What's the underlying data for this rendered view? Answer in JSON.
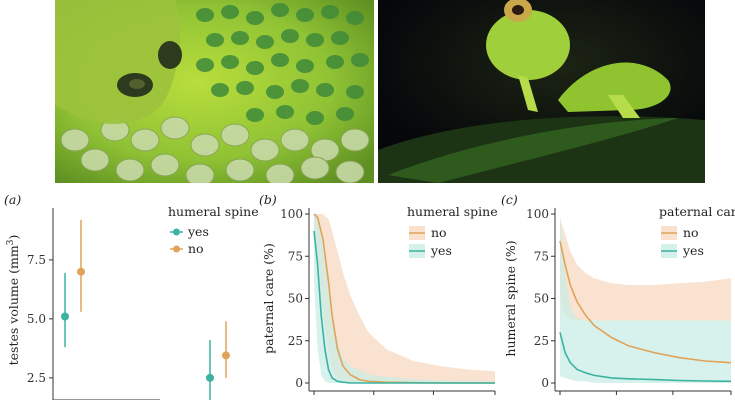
{
  "photos": {
    "left": {
      "subject": "glass frog with eggs"
    },
    "right": {
      "subject": "green frog on leaf"
    }
  },
  "colors": {
    "teal": "#3bb3a2",
    "orange": "#e0a35a",
    "orange_fill": "#f7d9c0",
    "teal_fill": "#c9ece6"
  },
  "chart_data": [
    {
      "panel": "(a)",
      "type": "scatter",
      "title": "",
      "xlabel": "",
      "ylabel": "testes volume (mm",
      "ylabel_sup": "3",
      "ylabel_end": ")",
      "ylim": [
        1.9,
        9.7
      ],
      "yticks": [
        "2.5",
        "5.0",
        "7.5"
      ],
      "yticks_values": [
        2.5,
        5.0,
        7.5
      ],
      "legend": {
        "title": "humeral spine",
        "placement": "top-right",
        "entries": [
          "yes",
          "no"
        ]
      },
      "series": [
        {
          "name": "yes",
          "color": "#3bb3a2",
          "points": [
            {
              "group": 1,
              "y": 5.1,
              "low": 3.8,
              "high": 6.95
            },
            {
              "group": 2,
              "y": 2.5,
              "low": 1.55,
              "high": 4.1
            }
          ]
        },
        {
          "name": "no",
          "color": "#e0a35a",
          "points": [
            {
              "group": 1,
              "y": 7.0,
              "low": 5.3,
              "high": 9.2
            },
            {
              "group": 2,
              "y": 3.45,
              "low": 2.5,
              "high": 4.9
            }
          ]
        }
      ]
    },
    {
      "panel": "(b)",
      "type": "line",
      "title": "",
      "ylabel": "paternal care (%)",
      "xlim": [
        0,
        100
      ],
      "ylim": [
        0,
        100
      ],
      "yticks": [
        "0",
        "25",
        "50",
        "75",
        "100"
      ],
      "yticks_values": [
        0,
        25,
        50,
        75,
        100
      ],
      "legend": {
        "title": "humeral spine",
        "placement": "top-right",
        "entries": [
          "no",
          "yes"
        ]
      },
      "series": [
        {
          "name": "no",
          "color": "#e0a35a",
          "x": [
            0,
            2,
            5,
            8,
            10,
            13,
            16,
            20,
            25,
            30,
            40,
            55,
            70,
            85,
            100
          ],
          "y": [
            100,
            98,
            85,
            60,
            40,
            20,
            10,
            5,
            2,
            1,
            0.5,
            0.2,
            0,
            0,
            0
          ],
          "low": [
            90,
            75,
            40,
            18,
            8,
            3,
            1,
            0,
            0,
            0,
            0,
            0,
            0,
            0,
            0
          ],
          "high": [
            100,
            100,
            100,
            97,
            90,
            78,
            65,
            52,
            40,
            30,
            20,
            13,
            10,
            8,
            7
          ]
        },
        {
          "name": "yes",
          "color": "#3bb3a2",
          "x": [
            0,
            2,
            4,
            6,
            8,
            10,
            13,
            16,
            20,
            30,
            45,
            60,
            80,
            100
          ],
          "y": [
            90,
            70,
            40,
            20,
            8,
            3,
            1,
            0.5,
            0,
            0,
            0,
            0,
            0,
            0
          ],
          "low": [
            60,
            20,
            5,
            1,
            0,
            0,
            0,
            0,
            0,
            0,
            0,
            0,
            0,
            0
          ],
          "high": [
            100,
            100,
            92,
            75,
            55,
            40,
            25,
            15,
            10,
            5,
            3,
            2,
            1,
            1
          ]
        }
      ]
    },
    {
      "panel": "(c)",
      "type": "line",
      "title": "",
      "ylabel": "humeral spine (%)",
      "xlim": [
        0,
        100
      ],
      "ylim": [
        0,
        100
      ],
      "yticks": [
        "0",
        "25",
        "50",
        "75",
        "100"
      ],
      "yticks_values": [
        0,
        25,
        50,
        75,
        100
      ],
      "legend": {
        "title": "paternal care",
        "placement": "top-right",
        "entries": [
          "no",
          "yes"
        ]
      },
      "series": [
        {
          "name": "no",
          "color": "#e0a35a",
          "x": [
            0,
            3,
            6,
            10,
            15,
            20,
            30,
            40,
            55,
            70,
            85,
            100
          ],
          "y": [
            84,
            70,
            58,
            48,
            40,
            34,
            27,
            22,
            18,
            15,
            13,
            12
          ],
          "low": [
            50,
            40,
            38,
            37,
            37,
            37,
            37,
            37,
            37,
            37,
            37,
            37
          ],
          "high": [
            97,
            88,
            78,
            70,
            65,
            62,
            59,
            58,
            58,
            59,
            60,
            62
          ]
        },
        {
          "name": "yes",
          "color": "#3bb3a2",
          "x": [
            0,
            3,
            6,
            10,
            15,
            20,
            30,
            40,
            55,
            70,
            85,
            100
          ],
          "y": [
            30,
            18,
            12,
            8,
            6,
            4.5,
            3,
            2.5,
            2,
            1.5,
            1.2,
            1
          ],
          "low": [
            4,
            3,
            2,
            1,
            1,
            0,
            0,
            0,
            0,
            0,
            0,
            0
          ],
          "high": [
            100,
            65,
            45,
            38,
            37,
            37,
            37,
            37,
            37,
            37,
            37,
            37
          ]
        }
      ]
    }
  ]
}
